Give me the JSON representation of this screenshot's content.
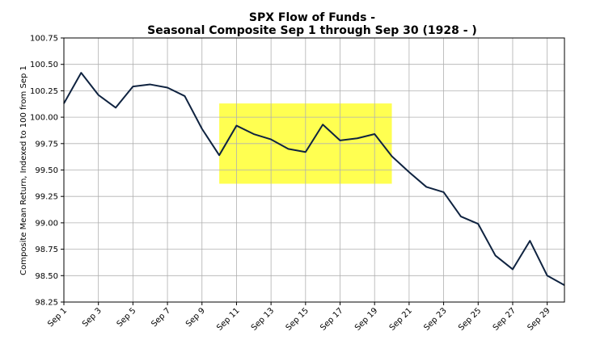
{
  "chart_data": {
    "type": "line",
    "title": [
      "SPX Flow of Funds -",
      "Seasonal Composite Sep 1 through Sep 30 (1928 - )"
    ],
    "xlabel": "",
    "ylabel": "Composite Mean Return, Indexed to 100 from Sep 1",
    "x": [
      1,
      2,
      3,
      4,
      5,
      6,
      7,
      8,
      9,
      10,
      11,
      12,
      13,
      14,
      15,
      16,
      17,
      18,
      19,
      20,
      21,
      22,
      23,
      24,
      25,
      26,
      27,
      28,
      29,
      30
    ],
    "values": [
      100.13,
      100.42,
      100.21,
      100.09,
      100.29,
      100.31,
      100.28,
      100.2,
      99.89,
      99.64,
      99.92,
      99.84,
      99.79,
      99.7,
      99.67,
      99.93,
      99.78,
      99.8,
      99.84,
      99.63,
      99.48,
      99.34,
      99.29,
      99.06,
      98.99,
      98.69,
      98.56,
      98.83,
      98.5,
      98.41
    ],
    "xlim": [
      1,
      30
    ],
    "ylim": [
      98.25,
      100.75
    ],
    "yticks": [
      "98.25",
      "98.50",
      "98.75",
      "99.00",
      "99.25",
      "99.50",
      "99.75",
      "100.00",
      "100.25",
      "100.50",
      "100.75"
    ],
    "ytick_values": [
      98.25,
      98.5,
      98.75,
      99.0,
      99.25,
      99.5,
      99.75,
      100.0,
      100.25,
      100.5,
      100.75
    ],
    "xticks": [
      "Sep 1",
      "Sep 3",
      "Sep 5",
      "Sep 7",
      "Sep 9",
      "Sep 11",
      "Sep 13",
      "Sep 15",
      "Sep 17",
      "Sep 19",
      "Sep 21",
      "Sep 23",
      "Sep 25",
      "Sep 27",
      "Sep 29"
    ],
    "xtick_values": [
      1,
      3,
      5,
      7,
      9,
      11,
      13,
      15,
      17,
      19,
      21,
      23,
      25,
      27,
      29
    ],
    "grid": true,
    "highlight": {
      "x_range": [
        10,
        20
      ],
      "y_range": [
        99.37,
        100.13
      ],
      "color": "#ffff33"
    },
    "line_color": "#0f2340"
  }
}
